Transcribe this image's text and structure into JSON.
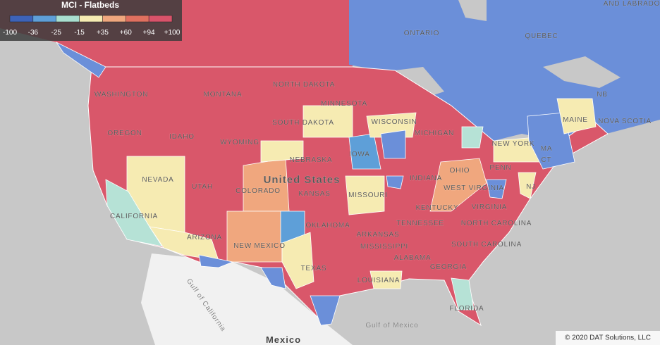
{
  "legend": {
    "title": "MCI - Flatbeds",
    "ticks": [
      "-100",
      "-36",
      "-25",
      "-15",
      "+35",
      "+60",
      "+94",
      "+100"
    ],
    "colors": [
      "#3d63b8",
      "#5e9fd8",
      "#a9dfd0",
      "#f6ebb2",
      "#f0a77e",
      "#e0705f",
      "#d9536a",
      "#c41e3a"
    ]
  },
  "map": {
    "labels": [
      "ONTARIO",
      "QUEBEC",
      "AND LABRADOR",
      "NB",
      "NOVA SCOTIA",
      "MAINE",
      "NEW YORK",
      "PENN",
      "NJ",
      "CT",
      "MA",
      "WASHINGTON",
      "OREGON",
      "IDAHO",
      "MONTANA",
      "NORTH DAKOTA",
      "SOUTH DAKOTA",
      "WYOMING",
      "NEBRASKA",
      "IOWA",
      "MINNESOTA",
      "WISCONSIN",
      "MICHIGAN",
      "NEVADA",
      "UTAH",
      "COLORADO",
      "KANSAS",
      "MISSOURI",
      "INDIANA",
      "OHIO",
      "WEST VIRGINIA",
      "VIRGINIA",
      "KENTUCKY",
      "CALIFORNIA",
      "ARIZONA",
      "NEW MEXICO",
      "OKLAHOMA",
      "ARKANSAS",
      "TENNESSEE",
      "NORTH CAROLINA",
      "SOUTH CAROLINA",
      "MISSISSIPPI",
      "ALABAMA",
      "GEORGIA",
      "TEXAS",
      "LOUISIANA",
      "FLORIDA",
      "United States",
      "Gulf of Mexico",
      "Mexico",
      "Gulf of California"
    ]
  },
  "footer": {
    "copyright": "© 2020 DAT Solutions, LLC"
  }
}
